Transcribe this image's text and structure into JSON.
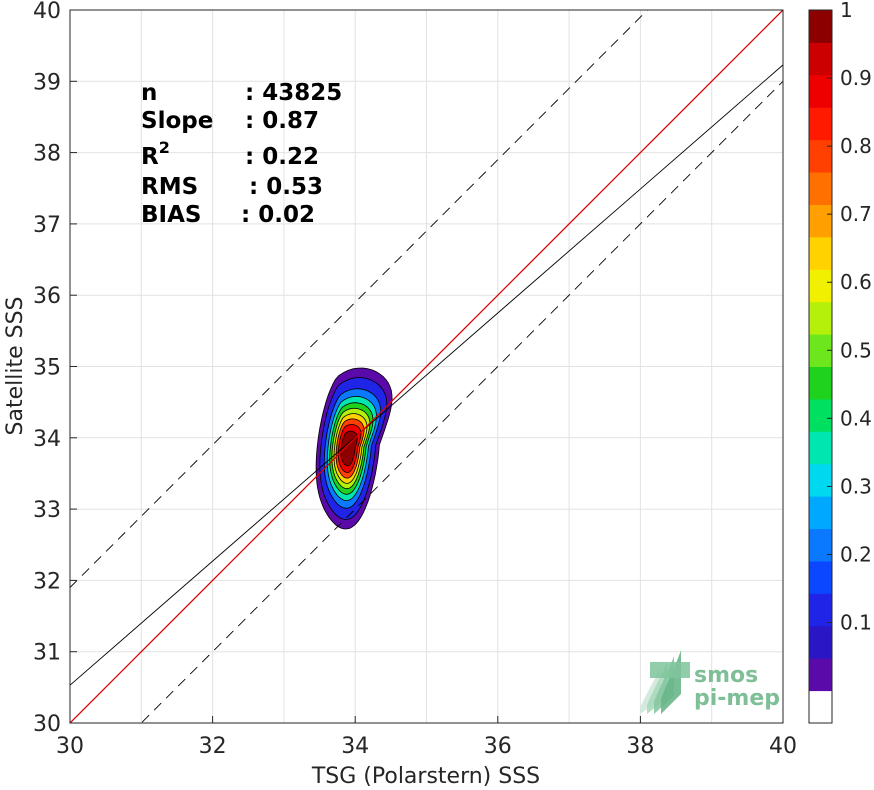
{
  "chart_data": {
    "type": "density-scatter",
    "xlabel": "TSG (Polarstern) SSS",
    "ylabel": "Satellite SSS",
    "xlim": [
      30,
      40
    ],
    "ylim": [
      30,
      40
    ],
    "x_ticks": [
      "30",
      "32",
      "34",
      "36",
      "38",
      "40"
    ],
    "y_ticks": [
      "30",
      "31",
      "32",
      "33",
      "34",
      "35",
      "36",
      "37",
      "38",
      "39",
      "40"
    ],
    "grid": true,
    "stats": [
      {
        "label": "n",
        "value": ": 43825"
      },
      {
        "label": "Slope",
        "value": ": 0.87"
      },
      {
        "label": "R",
        "sup": "2",
        "value": ": 0.22"
      },
      {
        "label": "RMS",
        "value": ": 0.53"
      },
      {
        "label": "BIAS",
        "value": ": 0.02"
      }
    ],
    "lines": {
      "identity": {
        "slope": 1.0,
        "intercept": 0.0,
        "color": "#dd0000"
      },
      "fit": {
        "slope": 0.87,
        "intercept": 4.43,
        "color": "#000000"
      },
      "upper_bound": {
        "slope": 1.0,
        "intercept": 1.9,
        "style": "dashed",
        "color": "#000000"
      },
      "lower_bound": {
        "slope": 1.0,
        "intercept": -1.0,
        "style": "dashed",
        "color": "#000000"
      }
    },
    "density_center": {
      "x": 33.9,
      "y": 33.85
    },
    "density_levels": [
      0.05,
      0.1,
      0.2,
      0.3,
      0.4,
      0.5,
      0.6,
      0.7,
      0.8,
      0.9
    ],
    "colorbar": {
      "ticks": [
        "0.1",
        "0.2",
        "0.3",
        "0.4",
        "0.5",
        "0.6",
        "0.7",
        "0.8",
        "0.9",
        "1"
      ],
      "colors": [
        "#ffffff",
        "#5a0aa8",
        "#2a16c4",
        "#1f24e6",
        "#0a47ff",
        "#0a78ff",
        "#00a8ff",
        "#00d8f0",
        "#00e6b0",
        "#00e060",
        "#1ed21e",
        "#6ee61e",
        "#b4f00a",
        "#f0f000",
        "#ffd200",
        "#ffa000",
        "#ff7000",
        "#ff4000",
        "#ff1a00",
        "#ee0000",
        "#cc0000",
        "#8c0000"
      ]
    },
    "logo": {
      "line1": "smos",
      "line2": "pi-mep"
    }
  }
}
